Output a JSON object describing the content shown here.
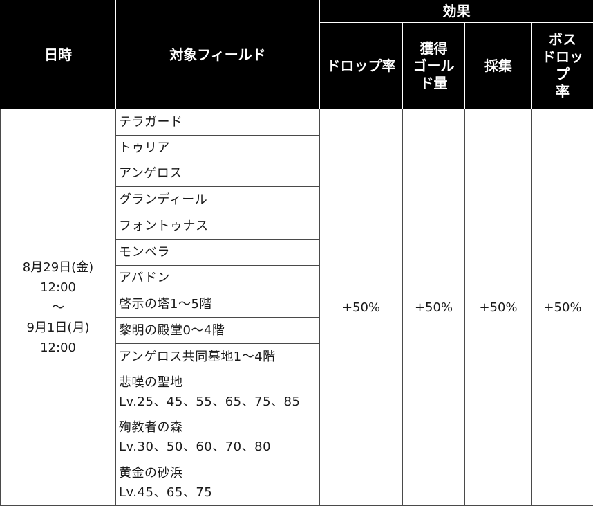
{
  "headers": {
    "date": "日時",
    "field": "対象フィールド",
    "effect_group": "効果",
    "drop_rate": "ドロップ率",
    "gold_line1": "獲得",
    "gold_line2": "ゴール",
    "gold_line3": "ド量",
    "gathering": "採集",
    "boss_line1": "ボス",
    "boss_line2": "ドロッ",
    "boss_line3": "プ",
    "boss_line4": "率"
  },
  "period": {
    "start": "8月29日(金)",
    "start_time": "12:00",
    "separator": "～",
    "end": "9月1日(月)",
    "end_time": "12:00"
  },
  "effects": {
    "drop_rate": "+50%",
    "gold": "+50%",
    "gathering": "+50%",
    "boss_drop_rate": "+50%"
  },
  "fields": [
    {
      "name": "テラガード"
    },
    {
      "name": "トゥリア"
    },
    {
      "name": "アンゲロス"
    },
    {
      "name": "グランディール"
    },
    {
      "name": "フォントゥナス"
    },
    {
      "name": "モンベラ"
    },
    {
      "name": "アバドン"
    },
    {
      "name": "啓示の塔1～5階"
    },
    {
      "name": "黎明の殿堂0～4階"
    },
    {
      "name": "アンゲロス共同墓地1～4階"
    },
    {
      "name": "悲嘆の聖地",
      "levels": "Lv.25、45、55、65、75、85"
    },
    {
      "name": "殉教者の森",
      "levels": "Lv.30、50、60、70、80"
    },
    {
      "name": "黄金の砂浜",
      "levels": "Lv.45、65、75"
    }
  ]
}
